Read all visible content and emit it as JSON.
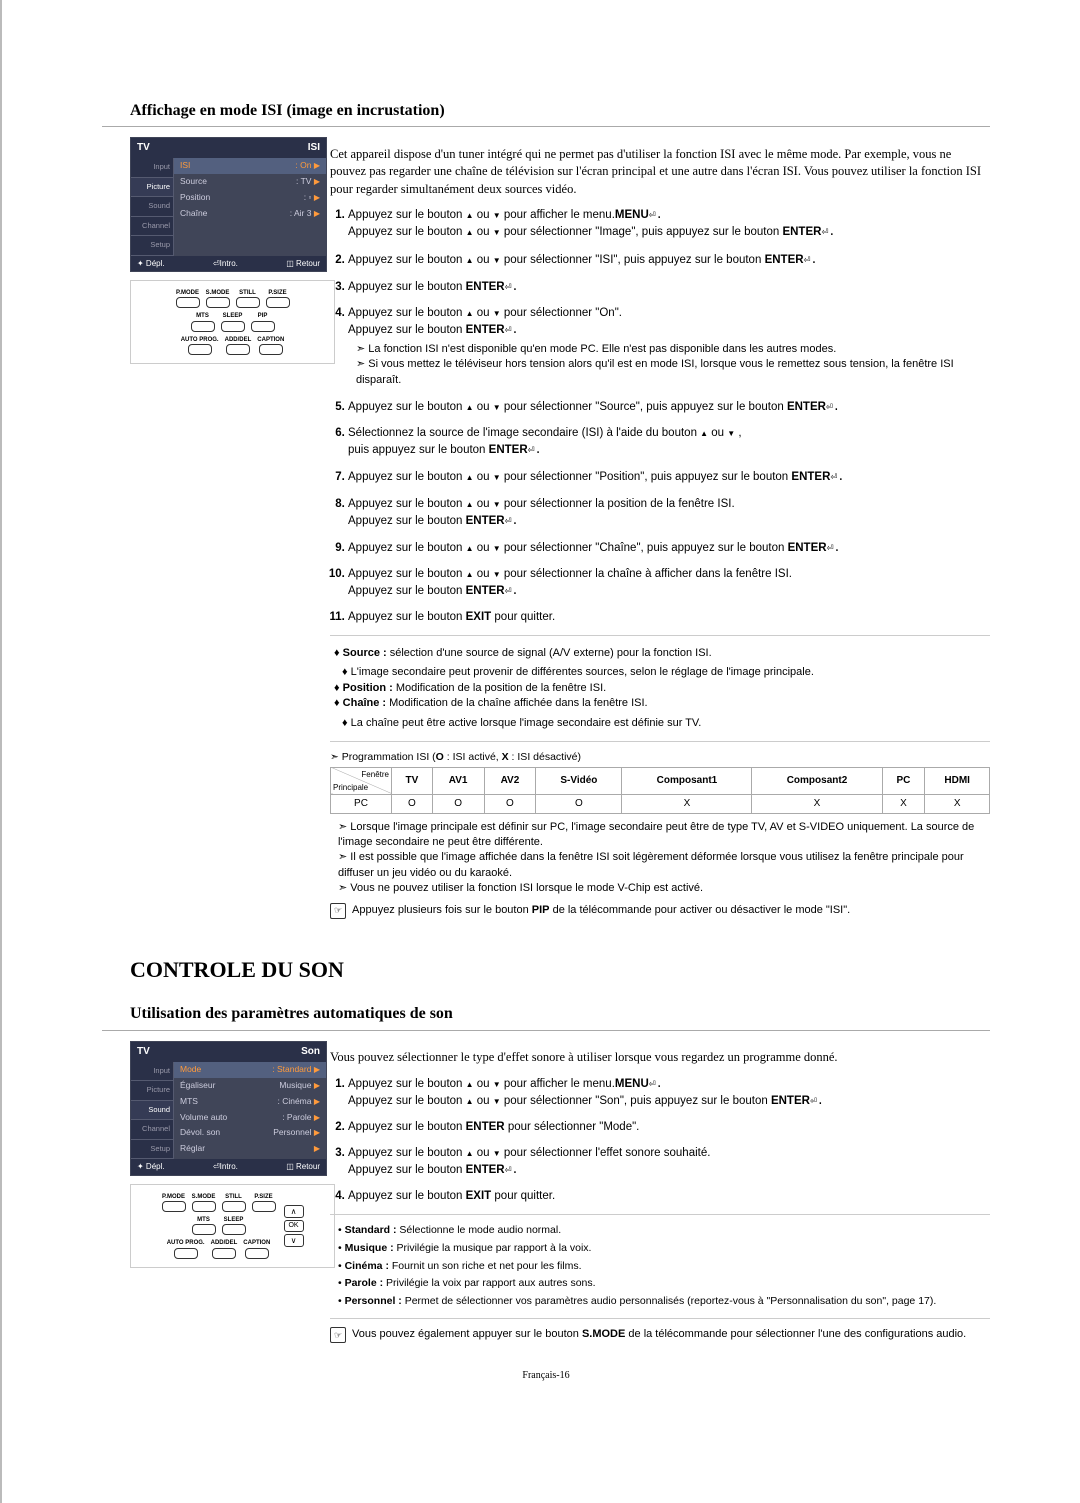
{
  "section1": {
    "title": "Affichage en mode ISI (image en incrustation)",
    "osd": {
      "tv": "TV",
      "corner": "ISI",
      "side": [
        "Input",
        "Picture",
        "Sound",
        "Channel",
        "Setup"
      ],
      "side_sel_index": 1,
      "rows": [
        {
          "label": "ISI",
          "value": ": On",
          "hi": true
        },
        {
          "label": "Source",
          "value": ": TV",
          "hi": false
        },
        {
          "label": "Position",
          "value": ": ▫",
          "hi": false
        },
        {
          "label": "Chaîne",
          "value": ":     Air    3",
          "hi": false
        }
      ],
      "foot": {
        "move": "✦ Dépl.",
        "enter": "⏎Intro.",
        "ret": "◫ Retour"
      }
    },
    "remote": {
      "row1": [
        "P.MODE",
        "S.MODE",
        "STILL",
        "P.SIZE"
      ],
      "row2": [
        "MTS",
        "SLEEP",
        "PIP"
      ],
      "row3": [
        "AUTO PROG.",
        "ADD/DEL",
        "CAPTION"
      ]
    },
    "intro": "Cet appareil dispose d'un tuner intégré qui ne permet pas d'utiliser la fonction ISI avec le même mode. Par exemple, vous ne pouvez pas regarder une chaîne de télévision sur l'écran principal et une autre dans l'écran ISI. Vous pouvez utiliser la fonction ISI pour regarder simultanément deux sources vidéo.",
    "steps": [
      {
        "text": "Appuyez sur le bouton ",
        "b1": "MENU",
        "text2": " pour afficher le menu.",
        "line2": "Appuyez sur le bouton ",
        "ud": true,
        "line2b": " pour sélectionner \"Image\", puis appuyez sur le bouton ",
        "b2": "ENTER",
        "tail": "⏎."
      },
      {
        "text": "Appuyez sur le bouton ",
        "ud": true,
        "text2": " pour sélectionner \"ISI\", puis appuyez sur le bouton ",
        "b1": "ENTER",
        "tail": "⏎."
      },
      {
        "text": "Appuyez sur le bouton ",
        "b1": "ENTER",
        "tail": "⏎."
      },
      {
        "text": "Appuyez sur le bouton ",
        "ud": true,
        "text2": " pour sélectionner \"On\".",
        "line2": "Appuyez sur le bouton ",
        "b2": "ENTER",
        "tail": "⏎.",
        "sub": [
          "La fonction ISI n'est disponible qu'en mode PC. Elle n'est pas disponible dans les autres modes.",
          "Si vous mettez le téléviseur hors tension alors qu'il est en mode ISI, lorsque vous le remettez sous tension, la fenêtre ISI disparaît."
        ]
      },
      {
        "text": "Appuyez sur le bouton ",
        "ud": true,
        "text2": " pour sélectionner \"Source\", puis appuyez sur le bouton ",
        "b1": "ENTER",
        "tail": "⏎."
      },
      {
        "text": "Sélectionnez la source de l'image secondaire (ISI) à l'aide du bouton ",
        "ud": true,
        "text2": ",",
        "line2": "puis appuyez sur le bouton ",
        "b2": "ENTER",
        "tail": "⏎."
      },
      {
        "text": "Appuyez sur le bouton ",
        "ud": true,
        "text2": " pour sélectionner \"Position\", puis appuyez sur le bouton ",
        "b1": "ENTER",
        "tail": "⏎."
      },
      {
        "text": "Appuyez sur le bouton ",
        "ud": true,
        "text2": " pour sélectionner la position de la fenêtre ISI.",
        "line2": "Appuyez sur le bouton ",
        "b2": "ENTER",
        "tail": "⏎."
      },
      {
        "text": "Appuyez sur le bouton ",
        "ud": true,
        "text2": " pour sélectionner \"Chaîne\", puis appuyez sur le bouton ",
        "b1": "ENTER",
        "tail": "⏎."
      },
      {
        "text": "Appuyez sur le bouton ",
        "ud": true,
        "text2": " pour sélectionner la chaîne à afficher dans la fenêtre ISI.",
        "line2": "Appuyez sur le bouton ",
        "b2": "ENTER",
        "tail": "⏎."
      },
      {
        "text": "Appuyez sur le bouton ",
        "b1": "EXIT",
        "text2": " pour quitter."
      }
    ],
    "notebox": {
      "d1": {
        "label": "Source :",
        "text": " sélection d'une source de signal (A/V externe) pour la fonction ISI."
      },
      "d1_sub": "L'image secondaire peut provenir de différentes sources, selon le réglage de l'image principale.",
      "d2": {
        "label": "Position :",
        "text": " Modification de la position de la fenêtre ISI."
      },
      "d3": {
        "label": "Chaîne :",
        "text": " Modification de la chaîne affichée dans la fenêtre ISI."
      },
      "d3_sub": "La chaîne peut être active lorsque l'image secondaire est définie sur TV."
    },
    "isi_caption_prefix": "➣ Programmation ISI (",
    "isi_caption": "O : ISI activé, X : ISI désactivé)",
    "isi_table": {
      "diag_top": "Fenêtre",
      "diag_bot": "Principale",
      "cols": [
        "TV",
        "AV1",
        "AV2",
        "S-Vidéo",
        "Composant1",
        "Composant2",
        "PC",
        "HDMI"
      ],
      "row_label": "PC",
      "cells": [
        "O",
        "O",
        "O",
        "O",
        "X",
        "X",
        "X",
        "X"
      ]
    },
    "post_notes": [
      "Lorsque l'image principale est définir sur PC, l'image secondaire peut être de type TV, AV et S-VIDEO uniquement. La source de l'image secondaire ne peut être différente.",
      "Il est possible que l'image affichée dans la fenêtre ISI soit légèrement déformée lorsque vous utilisez la fenêtre principale pour diffuser un jeu vidéo ou du karaoké.",
      "Vous ne pouvez utiliser la fonction ISI lorsque le mode V-Chip est activé."
    ],
    "hand_note": "Appuyez plusieurs fois sur le bouton PIP de la télécommande pour activer ou désactiver le mode \"ISI\"."
  },
  "section2_heading": "CONTROLE DU SON",
  "section2": {
    "title": "Utilisation des paramètres automatiques de son",
    "osd": {
      "tv": "TV",
      "corner": "Son",
      "side": [
        "Input",
        "Picture",
        "Sound",
        "Channel",
        "Setup"
      ],
      "side_sel_index": 2,
      "rows": [
        {
          "label": "Mode",
          "value": ":       Standard",
          "hi": true
        },
        {
          "label": "Égaliseur",
          "value": "         Musique",
          "hi": false
        },
        {
          "label": "MTS",
          "value": ":       Cinéma",
          "hi": false
        },
        {
          "label": "Volume auto",
          "value": ":       Parole",
          "hi": false
        },
        {
          "label": "Dévol. son",
          "value": "         Personnel",
          "hi": false
        },
        {
          "label": "Réglar",
          "value": "",
          "hi": false
        }
      ],
      "foot": {
        "move": "✦ Dépl.",
        "enter": "⏎Intro.",
        "ret": "◫ Retour"
      }
    },
    "remote": {
      "row1": [
        "P.MODE",
        "S.MODE",
        "STILL",
        "P.SIZE"
      ],
      "row2": [
        "MTS",
        "SLEEP"
      ],
      "row3": [
        "AUTO PROG.",
        "ADD/DEL",
        "CAPTION"
      ]
    },
    "intro": "Vous pouvez sélectionner le type d'effet sonore à utiliser lorsque vous regardez un programme donné.",
    "steps": [
      {
        "text": "Appuyez sur le bouton ",
        "b1": "MENU",
        "text2": " pour afficher le menu.",
        "line2": "Appuyez sur le bouton ",
        "ud": true,
        "line2b": " pour sélectionner \"Son\", puis appuyez sur le bouton ",
        "b2": "ENTER",
        "tail": "⏎."
      },
      {
        "text": "Appuyez sur le bouton ",
        "b1": "ENTER",
        "tail": "⏎",
        "text2": " pour sélectionner \"Mode\"."
      },
      {
        "text": "Appuyez sur le bouton ",
        "ud": true,
        "text2": " pour sélectionner l'effet sonore souhaité.",
        "line2": "Appuyez sur le bouton ",
        "b2": "ENTER",
        "tail": "⏎."
      },
      {
        "text": "Appuyez sur le bouton ",
        "b1": "EXIT",
        "text2": " pour quitter."
      }
    ],
    "modes": [
      {
        "label": "Standard :",
        "text": " Sélectionne le mode audio normal."
      },
      {
        "label": "Musique :",
        "text": " Privilégie la musique par rapport à la voix."
      },
      {
        "label": "Cinéma :",
        "text": " Fournit un son riche et net pour les films."
      },
      {
        "label": "Parole :",
        "text": " Privilégie la voix par rapport aux autres sons."
      },
      {
        "label": "Personnel :",
        "text": " Permet de sélectionner vos paramètres audio personnalisés (reportez-vous à \"Personnalisation du son\", page 17)."
      }
    ],
    "hand_note": "Vous pouvez également appuyer sur le bouton S.MODE de la télécommande pour sélectionner l'une des configurations audio."
  },
  "footer": "Français-16"
}
